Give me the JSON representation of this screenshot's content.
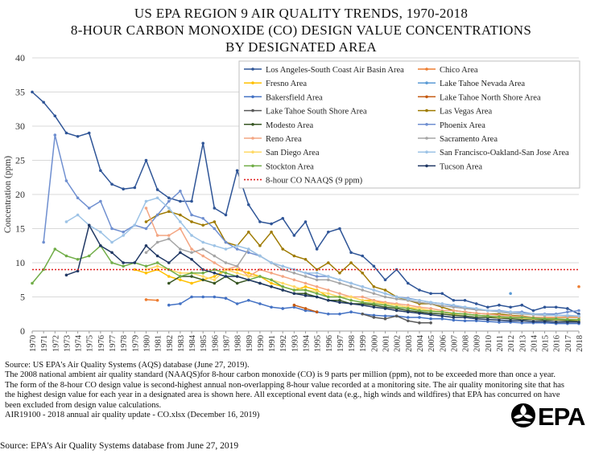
{
  "chart_data": {
    "type": "line",
    "title": [
      "US EPA REGION 9 AIR QUALITY TRENDS, 1970-2018",
      "8-HOUR CARBON MONOXIDE (CO) DESIGN VALUE CONCENTRATIONS",
      "BY DESIGNATED AREA"
    ],
    "ylabel": "Concentration (ppm)",
    "xlabel": "",
    "ylim": [
      0,
      40
    ],
    "yticks": [
      0,
      5,
      10,
      15,
      20,
      25,
      30,
      35,
      40
    ],
    "x": [
      1970,
      1971,
      1972,
      1973,
      1974,
      1975,
      1976,
      1977,
      1978,
      1979,
      1980,
      1981,
      1982,
      1983,
      1984,
      1985,
      1986,
      1987,
      1988,
      1989,
      1990,
      1991,
      1992,
      1993,
      1994,
      1995,
      1996,
      1997,
      1998,
      1999,
      2000,
      2001,
      2002,
      2003,
      2004,
      2005,
      2006,
      2007,
      2008,
      2009,
      2010,
      2011,
      2012,
      2013,
      2014,
      2015,
      2016,
      2017,
      2018
    ],
    "legend_position": "top-right",
    "grid": "horizontal",
    "reference_line": {
      "name": "8-hour CO NAAQS (9 ppm)",
      "value": 9,
      "color": "#e02020"
    },
    "series": [
      {
        "name": "Los Angeles-South Coast Air Basin Area",
        "color": "#2f5597",
        "values": [
          35,
          33.5,
          31.5,
          29,
          28.5,
          29,
          23.5,
          21.5,
          20.8,
          21,
          25,
          20.7,
          19.5,
          19,
          19,
          27.5,
          18,
          17,
          23.5,
          18.5,
          16,
          15.7,
          16.5,
          14,
          16,
          12,
          14.5,
          15,
          11.5,
          11,
          9.5,
          7.5,
          9,
          7,
          6,
          5.5,
          5.5,
          4.5,
          4.5,
          4,
          3.5,
          3.8,
          3.5,
          3.8,
          3,
          3.5,
          3.5,
          3.3,
          2.5
        ]
      },
      {
        "name": "Chico Area",
        "color": "#ed7d31",
        "values": [
          null,
          null,
          null,
          null,
          null,
          null,
          null,
          null,
          null,
          null,
          4.6,
          4.5,
          null,
          null,
          null,
          null,
          null,
          null,
          null,
          null,
          null,
          null,
          null,
          null,
          null,
          null,
          null,
          null,
          null,
          null,
          null,
          null,
          null,
          null,
          null,
          null,
          null,
          null,
          null,
          null,
          null,
          null,
          null,
          null,
          null,
          null,
          null,
          null,
          6.5
        ]
      },
      {
        "name": "Fresno Area",
        "color": "#ffc000",
        "values": [
          null,
          null,
          null,
          null,
          null,
          null,
          null,
          null,
          null,
          9,
          8.5,
          9,
          8,
          7.5,
          7,
          7.5,
          8,
          9,
          9,
          8.5,
          8,
          7,
          6.5,
          6,
          6.5,
          6,
          5,
          5,
          5,
          4.5,
          4.5,
          4,
          3.8,
          3.5,
          3,
          3,
          2.8,
          2.5,
          2.5,
          2.3,
          2.2,
          2,
          2,
          2,
          1.8,
          1.8,
          2,
          2,
          2
        ]
      },
      {
        "name": "Lake Tahoe Nevada Area",
        "color": "#5b9bd5",
        "values": [
          null,
          null,
          null,
          null,
          null,
          null,
          null,
          null,
          null,
          null,
          null,
          null,
          null,
          null,
          null,
          null,
          null,
          null,
          null,
          null,
          null,
          null,
          null,
          null,
          null,
          null,
          null,
          null,
          null,
          null,
          null,
          null,
          null,
          null,
          null,
          null,
          null,
          null,
          null,
          null,
          null,
          null,
          5.5,
          null,
          null,
          null,
          null,
          null,
          null
        ]
      },
      {
        "name": "Bakersfield Area",
        "color": "#4472c4",
        "values": [
          null,
          null,
          null,
          null,
          null,
          null,
          null,
          null,
          null,
          null,
          null,
          null,
          3.8,
          4,
          5,
          5,
          5,
          4.8,
          4,
          4.5,
          4,
          3.5,
          3.3,
          3.5,
          3,
          2.8,
          2.5,
          2.5,
          2.8,
          2.5,
          2.3,
          2.2,
          2.2,
          2,
          2,
          1.8,
          1.8,
          1.6,
          1.5,
          1.5,
          1.4,
          1.3,
          1.3,
          1.2,
          1.2,
          1.2,
          1.1,
          1.1,
          1.1
        ]
      },
      {
        "name": "Lake Tahoe North Shore Area",
        "color": "#c55a11",
        "values": [
          null,
          null,
          null,
          null,
          null,
          null,
          null,
          null,
          null,
          null,
          null,
          null,
          null,
          null,
          null,
          null,
          null,
          null,
          null,
          null,
          null,
          null,
          null,
          3.8,
          3.3,
          2.8,
          null,
          null,
          null,
          null,
          null,
          null,
          null,
          null,
          null,
          null,
          null,
          null,
          null,
          null,
          null,
          null,
          null,
          null,
          null,
          null,
          null,
          null,
          null
        ]
      },
      {
        "name": "Lake Tahoe South Shore Area",
        "color": "#595959",
        "values": [
          null,
          null,
          null,
          null,
          null,
          null,
          null,
          null,
          null,
          null,
          null,
          null,
          null,
          null,
          null,
          null,
          null,
          null,
          null,
          null,
          null,
          null,
          null,
          null,
          null,
          null,
          null,
          null,
          null,
          2.5,
          2,
          1.8,
          2.2,
          1.5,
          1.2,
          1.2,
          null,
          null,
          null,
          null,
          null,
          null,
          null,
          null,
          null,
          null,
          null,
          null,
          null
        ]
      },
      {
        "name": "Las Vegas Area",
        "color": "#9e7a00",
        "values": [
          null,
          null,
          null,
          null,
          null,
          null,
          null,
          null,
          null,
          null,
          16,
          17,
          17.5,
          17,
          16,
          15.5,
          16,
          13,
          12.5,
          14.5,
          12.5,
          14.5,
          12,
          11,
          10.5,
          9,
          10,
          8.5,
          10,
          8.5,
          6.5,
          6,
          5,
          4.5,
          4,
          4,
          3.5,
          3,
          2.8,
          2.6,
          2.5,
          2.5,
          2.3,
          2.2,
          2,
          2,
          2,
          2,
          2
        ]
      },
      {
        "name": "Modesto Area",
        "color": "#375623",
        "values": [
          null,
          null,
          null,
          null,
          null,
          null,
          null,
          null,
          null,
          null,
          null,
          null,
          7,
          8,
          8,
          7.5,
          7,
          8,
          7,
          7.5,
          7,
          6.5,
          6,
          5.5,
          5.5,
          5,
          4.5,
          4.5,
          4,
          4,
          3.8,
          3.5,
          3.3,
          3,
          2.8,
          2.6,
          2.5,
          2.3,
          2.2,
          2,
          2,
          1.9,
          1.8,
          1.7,
          1.7,
          1.6,
          1.6,
          1.5,
          1.5
        ]
      },
      {
        "name": "Phoenix Area",
        "color": "#6f8fd0",
        "values": [
          null,
          13,
          28.7,
          22,
          19.5,
          18,
          19,
          15,
          14.5,
          15.5,
          15,
          17,
          19,
          20.5,
          17,
          16.5,
          15,
          13,
          12,
          11.5,
          11,
          10,
          9.5,
          9,
          8.5,
          8,
          8,
          7.5,
          7,
          6.5,
          6,
          5.5,
          5,
          4.8,
          4.5,
          4.2,
          4,
          3.7,
          3.5,
          3.2,
          3,
          3,
          2.8,
          2.8,
          2.5,
          2.5,
          2.5,
          2.8,
          3
        ]
      },
      {
        "name": "Reno Area",
        "color": "#f4a582",
        "values": [
          null,
          null,
          null,
          null,
          null,
          null,
          null,
          null,
          null,
          null,
          18,
          14,
          14,
          15,
          12,
          11,
          10,
          9,
          9.5,
          8,
          9,
          8.5,
          8,
          7.5,
          7,
          6.5,
          6,
          5.5,
          5,
          5,
          4.5,
          4.2,
          4,
          3.8,
          3.5,
          3.3,
          3,
          3,
          2.8,
          2.6,
          2.5,
          2.3,
          2.2,
          2.1,
          2,
          2,
          2,
          2,
          2
        ]
      },
      {
        "name": "Sacramento Area",
        "color": "#a5a5a5",
        "values": [
          null,
          null,
          null,
          null,
          null,
          null,
          null,
          null,
          null,
          null,
          11.5,
          13,
          13.5,
          12,
          11.5,
          12,
          11,
          10,
          9.5,
          12,
          11,
          10,
          9,
          8.5,
          8,
          7.5,
          7.5,
          7,
          6.5,
          6,
          5.5,
          5,
          4.7,
          4.5,
          4.2,
          4,
          3.7,
          3.5,
          3.3,
          3.1,
          3,
          2.8,
          2.6,
          2.5,
          2.4,
          2.3,
          2.3,
          2.2,
          2.2
        ]
      },
      {
        "name": "San Diego Area",
        "color": "#ffd966",
        "values": [
          null,
          null,
          null,
          null,
          null,
          null,
          null,
          null,
          null,
          null,
          9,
          9.5,
          9,
          8.5,
          8.5,
          8,
          7.5,
          9,
          8.5,
          8,
          8,
          7.5,
          7,
          6.5,
          6,
          5.8,
          5.5,
          5,
          5,
          4.5,
          4.2,
          4,
          3.8,
          3.5,
          3.3,
          3,
          2.8,
          2.6,
          2.5,
          2.3,
          2.2,
          2,
          2,
          1.9,
          1.8,
          1.8,
          1.7,
          1.7,
          1.6
        ]
      },
      {
        "name": "San Francisco-Oakland-San Jose Area",
        "color": "#9dc3e6",
        "values": [
          null,
          null,
          null,
          16,
          17,
          15.5,
          14.5,
          13,
          14,
          15.5,
          19,
          19.5,
          18,
          16,
          14,
          13,
          12.5,
          12,
          12.5,
          12,
          11,
          10,
          9.5,
          9,
          8.5,
          8.5,
          8,
          7.5,
          7,
          6.5,
          6,
          5.5,
          5,
          4.7,
          4.5,
          4.2,
          4,
          3.8,
          3.5,
          3.3,
          3,
          2.9,
          2.8,
          2.6,
          2.5,
          2.4,
          2.3,
          2.3,
          2.2
        ]
      },
      {
        "name": "Stockton Area",
        "color": "#70ad47",
        "values": [
          7,
          9,
          12,
          11,
          10.5,
          11,
          12.5,
          10,
          9.5,
          10,
          9.5,
          10,
          9,
          8,
          8.5,
          8.5,
          9,
          8.5,
          8,
          7.5,
          8,
          7.5,
          6.5,
          6,
          6,
          5.5,
          5,
          5,
          4.5,
          4.2,
          4,
          3.8,
          3.5,
          3.3,
          3,
          2.9,
          2.8,
          2.6,
          2.5,
          2.3,
          2.2,
          2.1,
          2,
          2,
          1.9,
          1.8,
          1.8,
          1.7,
          1.7
        ]
      },
      {
        "name": "Tucson Area",
        "color": "#203864",
        "values": [
          null,
          null,
          null,
          8.2,
          8.8,
          15.5,
          12.5,
          11.5,
          10,
          10,
          12.5,
          11,
          10,
          11.5,
          10.5,
          9,
          8.5,
          8,
          8,
          7.5,
          7,
          6.5,
          6,
          5.5,
          5.2,
          5,
          4.5,
          4.2,
          4,
          3.8,
          3.5,
          3.3,
          3,
          2.8,
          2.6,
          2.4,
          2.2,
          2,
          2,
          1.8,
          1.7,
          1.6,
          1.5,
          1.5,
          1.4,
          1.4,
          1.3,
          1.3,
          1.3
        ]
      }
    ]
  },
  "notes": [
    "Source: US EPA's Air Quality Systems (AQS) database (June 27, 2019).",
    "The 2008 national ambient air quality standard (NAAQS)for 8-hour carbon monoxide (CO) is 9 parts per million (ppm), not to be exceeded more than once a year.",
    "The form of the 8-hour CO design value is second-highest annual non-overlapping 8-hour value recorded at a monitoring site. The air quality monitoring site that has the highest design value for each year in a designated area is shown here. All exceptional event data (e.g., high winds and wildfires) that EPA has concurred on have been excluded from design value calculations.",
    "AIR19100 - 2018 annual air quality update - CO.xlsx (December 16, 2019)"
  ],
  "footer_source": "Source: EPA's Air Quality Systems database from June 27, 2019",
  "logo": {
    "text": "EPA",
    "icon": "epa-flower-icon",
    "color": "#000000"
  }
}
